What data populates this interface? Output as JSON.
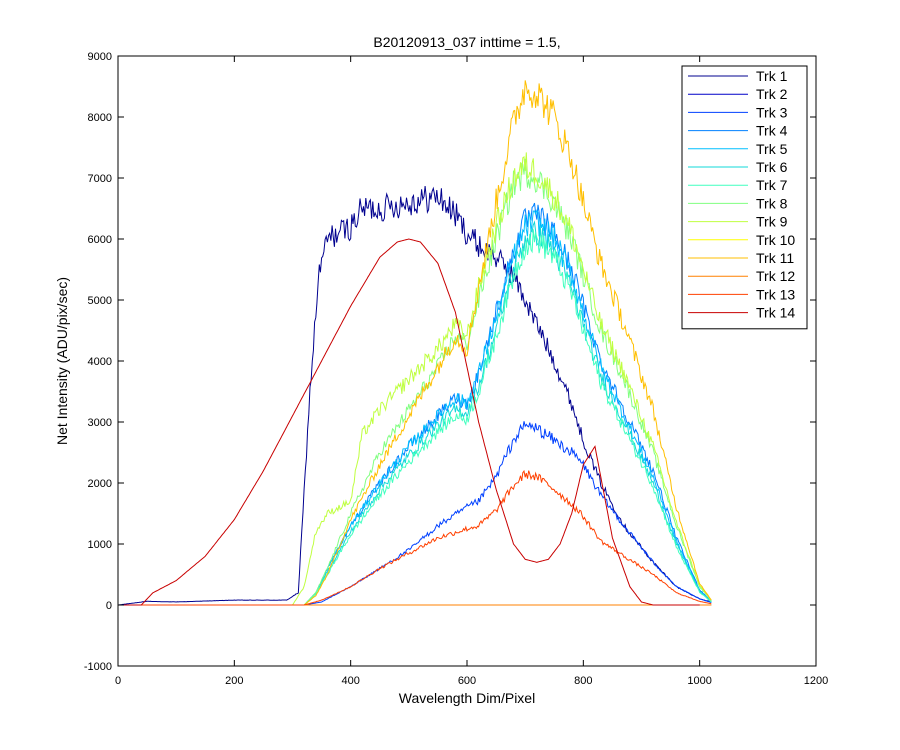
{
  "chart_data": {
    "type": "line",
    "title": "B20120913_037 inttime = 1.5,",
    "xlabel": "Wavelength Dim/Pixel",
    "ylabel": "Net Intensity (ADU/pix/sec)",
    "xlim": [
      0,
      1200
    ],
    "ylim": [
      -1000,
      9000
    ],
    "x_ticks": [
      0,
      200,
      400,
      600,
      800,
      1000,
      1200
    ],
    "y_ticks": [
      -1000,
      0,
      1000,
      2000,
      3000,
      4000,
      5000,
      6000,
      7000,
      8000,
      9000
    ],
    "grid": false,
    "legend_position": "top-right",
    "series": [
      {
        "name": "Trk 1",
        "color": "#00008f",
        "x": [
          0,
          50,
          100,
          200,
          290,
          310,
          330,
          345,
          360,
          380,
          400,
          420,
          450,
          500,
          550,
          580,
          600,
          620,
          650,
          680,
          700,
          720,
          750,
          780,
          800,
          830,
          870,
          920,
          960,
          1000,
          1020
        ],
        "y": [
          0,
          60,
          50,
          80,
          80,
          200,
          3500,
          5400,
          6000,
          6100,
          6200,
          6500,
          6500,
          6600,
          6700,
          6400,
          6100,
          5900,
          5700,
          5400,
          5000,
          4600,
          4000,
          3300,
          2700,
          2000,
          1300,
          700,
          300,
          100,
          50
        ]
      },
      {
        "name": "Trk 2",
        "color": "#0000c8",
        "x": [
          0,
          300,
          330,
          360,
          400,
          450,
          500,
          550,
          600,
          650,
          700,
          750,
          800,
          850,
          900,
          950,
          1000,
          1020
        ],
        "y": [
          0,
          0,
          0,
          0,
          0,
          0,
          0,
          0,
          0,
          0,
          0,
          0,
          0,
          0,
          0,
          0,
          0,
          0
        ]
      },
      {
        "name": "Trk 3",
        "color": "#0040ff",
        "x": [
          0,
          320,
          350,
          400,
          450,
          500,
          550,
          600,
          620,
          650,
          680,
          700,
          720,
          750,
          780,
          800,
          830,
          870,
          920,
          960,
          1000,
          1020
        ],
        "y": [
          0,
          0,
          50,
          300,
          600,
          900,
          1300,
          1600,
          1700,
          2100,
          2700,
          2950,
          2900,
          2700,
          2500,
          2300,
          1800,
          1300,
          700,
          300,
          100,
          40
        ]
      },
      {
        "name": "Trk 4",
        "color": "#0080ff",
        "x": [
          0,
          320,
          340,
          360,
          400,
          450,
          500,
          550,
          580,
          600,
          620,
          650,
          680,
          700,
          720,
          750,
          780,
          800,
          830,
          870,
          920,
          960,
          1000,
          1020
        ],
        "y": [
          0,
          0,
          200,
          600,
          1300,
          2000,
          2600,
          3100,
          3400,
          3300,
          3800,
          4800,
          5800,
          6300,
          6400,
          6100,
          5500,
          4900,
          4000,
          3200,
          2200,
          1100,
          250,
          60
        ]
      },
      {
        "name": "Trk 5",
        "color": "#00bfff",
        "x": [
          0,
          320,
          340,
          360,
          400,
          450,
          500,
          550,
          580,
          600,
          620,
          650,
          680,
          700,
          720,
          750,
          780,
          800,
          830,
          870,
          920,
          960,
          1000,
          1020
        ],
        "y": [
          0,
          0,
          200,
          600,
          1300,
          2000,
          2600,
          3100,
          3400,
          3300,
          3800,
          4700,
          5700,
          6200,
          6300,
          6000,
          5400,
          4800,
          3900,
          3100,
          2100,
          1050,
          230,
          55
        ]
      },
      {
        "name": "Trk 6",
        "color": "#10d8d8",
        "x": [
          0,
          320,
          340,
          360,
          400,
          450,
          500,
          550,
          580,
          600,
          620,
          650,
          680,
          700,
          720,
          750,
          780,
          800,
          830,
          870,
          920,
          960,
          1000,
          1020
        ],
        "y": [
          0,
          0,
          180,
          550,
          1200,
          1900,
          2450,
          2950,
          3200,
          3150,
          3600,
          4500,
          5500,
          6000,
          6100,
          5800,
          5200,
          4600,
          3750,
          3000,
          2000,
          1000,
          220,
          50
        ]
      },
      {
        "name": "Trk 7",
        "color": "#40ffbf",
        "x": [
          0,
          320,
          340,
          360,
          400,
          450,
          500,
          550,
          580,
          600,
          620,
          650,
          680,
          700,
          720,
          750,
          780,
          800,
          830,
          870,
          920,
          960,
          1000,
          1020
        ],
        "y": [
          0,
          0,
          180,
          500,
          1150,
          1800,
          2350,
          2850,
          3100,
          3050,
          3500,
          4400,
          5400,
          5900,
          6000,
          5700,
          5100,
          4500,
          3650,
          2900,
          1950,
          950,
          210,
          50
        ]
      },
      {
        "name": "Trk 8",
        "color": "#80ff80",
        "x": [
          0,
          320,
          340,
          360,
          400,
          450,
          500,
          550,
          580,
          600,
          620,
          650,
          680,
          700,
          720,
          750,
          780,
          800,
          830,
          870,
          920,
          960,
          1000,
          1020
        ],
        "y": [
          0,
          0,
          200,
          600,
          1500,
          2500,
          3200,
          3900,
          4400,
          4300,
          5000,
          6000,
          6900,
          7100,
          7000,
          6600,
          6000,
          5400,
          4500,
          3700,
          2500,
          1300,
          300,
          70
        ]
      },
      {
        "name": "Trk 9",
        "color": "#bfff40",
        "x": [
          0,
          300,
          320,
          340,
          360,
          400,
          420,
          450,
          500,
          550,
          580,
          600,
          620,
          650,
          680,
          700,
          720,
          750,
          780,
          800,
          830,
          870,
          920,
          960,
          1000,
          1020
        ],
        "y": [
          0,
          0,
          300,
          1200,
          1500,
          1700,
          2800,
          3200,
          3700,
          4200,
          4600,
          4400,
          5200,
          6200,
          7000,
          7200,
          7100,
          6700,
          6100,
          5500,
          4600,
          3800,
          2600,
          1350,
          320,
          75
        ]
      },
      {
        "name": "Trk 10",
        "color": "#ffff00",
        "x": [
          0,
          320,
          340,
          360,
          400,
          450,
          500,
          550,
          580,
          600,
          620,
          650,
          680,
          700,
          720,
          750,
          780,
          800,
          830,
          870,
          920,
          960,
          1000,
          1020
        ],
        "y": [
          0,
          0,
          0,
          0,
          0,
          0,
          0,
          0,
          0,
          0,
          0,
          0,
          0,
          0,
          0,
          0,
          0,
          0,
          0,
          0,
          0,
          0,
          0,
          0
        ]
      },
      {
        "name": "Trk 11",
        "color": "#ffbf00",
        "x": [
          0,
          320,
          340,
          360,
          400,
          450,
          500,
          550,
          580,
          600,
          620,
          650,
          680,
          700,
          720,
          750,
          780,
          800,
          830,
          870,
          920,
          960,
          1000,
          1020
        ],
        "y": [
          0,
          0,
          150,
          500,
          1400,
          2300,
          3100,
          3900,
          4400,
          4200,
          5200,
          6600,
          7900,
          8500,
          8400,
          8000,
          7300,
          6600,
          5600,
          4600,
          3200,
          1600,
          350,
          80
        ]
      },
      {
        "name": "Trk 12",
        "color": "#ff8000",
        "x": [
          0,
          320,
          350,
          400,
          450,
          500,
          550,
          600,
          620,
          650,
          680,
          700,
          720,
          750,
          780,
          800,
          830,
          870,
          920,
          960,
          1000,
          1020
        ],
        "y": [
          0,
          0,
          0,
          0,
          0,
          0,
          0,
          0,
          0,
          0,
          0,
          0,
          0,
          0,
          0,
          0,
          0,
          0,
          0,
          0,
          0,
          0
        ]
      },
      {
        "name": "Trk 13",
        "color": "#ff4000",
        "x": [
          0,
          320,
          350,
          400,
          450,
          500,
          550,
          600,
          620,
          650,
          680,
          700,
          720,
          750,
          780,
          800,
          830,
          870,
          920,
          960,
          1000,
          1020
        ],
        "y": [
          0,
          0,
          80,
          300,
          600,
          850,
          1100,
          1250,
          1300,
          1550,
          1950,
          2150,
          2100,
          1900,
          1650,
          1450,
          1050,
          800,
          500,
          200,
          60,
          20
        ]
      },
      {
        "name": "Trk 14",
        "color": "#c80000",
        "x": [
          0,
          40,
          60,
          100,
          150,
          200,
          250,
          300,
          350,
          400,
          450,
          480,
          500,
          520,
          550,
          580,
          600,
          620,
          650,
          680,
          700,
          720,
          740,
          760,
          780,
          800,
          820,
          850,
          880,
          900,
          920,
          950,
          1000
        ],
        "y": [
          0,
          0,
          200,
          400,
          800,
          1400,
          2200,
          3100,
          4000,
          4900,
          5700,
          5950,
          6000,
          5950,
          5600,
          4800,
          3900,
          3000,
          1900,
          1000,
          750,
          700,
          750,
          1000,
          1500,
          2300,
          2600,
          1100,
          300,
          50,
          0,
          0,
          0
        ]
      }
    ]
  }
}
